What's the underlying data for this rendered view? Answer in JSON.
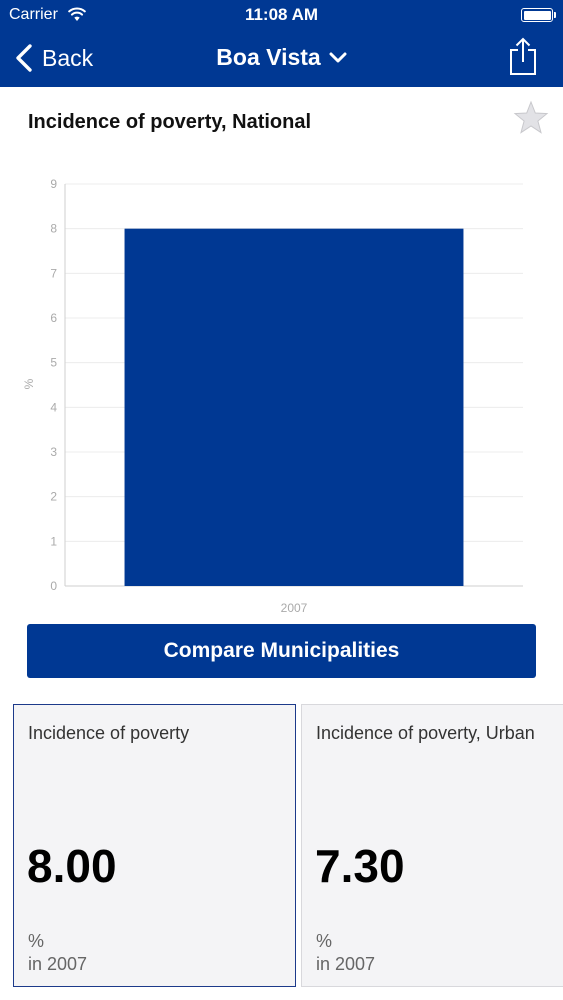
{
  "status_bar": {
    "carrier": "Carrier",
    "time": "11:08 AM"
  },
  "nav": {
    "back_label": "Back",
    "title": "Boa Vista"
  },
  "chart_title": "Incidence of poverty, National",
  "chart_data": {
    "type": "bar",
    "categories": [
      "2007"
    ],
    "values": [
      8.0
    ],
    "ylabel": "%",
    "ylim": [
      0,
      9
    ],
    "yticks": [
      0,
      1,
      2,
      3,
      4,
      5,
      6,
      7,
      8,
      9
    ],
    "grid": true,
    "bar_color": "#003893"
  },
  "compare_button_label": "Compare Municipalities",
  "cards": [
    {
      "title": "Incidence of poverty",
      "value": "8.00",
      "unit": "%",
      "year": "in 2007",
      "selected": true
    },
    {
      "title": "Incidence of poverty, Urban",
      "value": "7.30",
      "unit": "%",
      "year": "in 2007",
      "selected": false
    }
  ],
  "colors": {
    "brand": "#003893",
    "card_background": "#f4f4f6"
  }
}
